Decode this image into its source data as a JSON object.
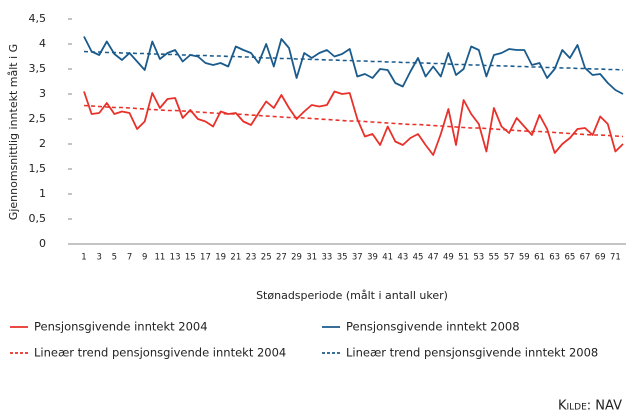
{
  "chart_data": {
    "type": "line",
    "y_label": "Gjennomsnittlig inntekt målt i G",
    "x_label": "Stønadsperiode (målt i antall uker)",
    "source": "Kilde: NAV",
    "categories": [
      1,
      null,
      3,
      null,
      5,
      null,
      7,
      null,
      9,
      null,
      11,
      null,
      13,
      null,
      15,
      null,
      17,
      null,
      19,
      null,
      21,
      null,
      23,
      null,
      25,
      null,
      27,
      null,
      29,
      null,
      31,
      null,
      33,
      null,
      35,
      null,
      37,
      null,
      39,
      null,
      41,
      null,
      43,
      null,
      45,
      null,
      47,
      null,
      49,
      null,
      51,
      null,
      53,
      null,
      55,
      null,
      57,
      null,
      59,
      null,
      61,
      null,
      63,
      null,
      65,
      null,
      67,
      null,
      69,
      null,
      71,
      null
    ],
    "ylim": [
      0,
      4.5
    ],
    "yticks": [
      0,
      {
        "value": 0.5,
        "label": "0,5"
      },
      1,
      {
        "value": 1.5,
        "label": "1,5"
      },
      2,
      {
        "value": 2.5,
        "label": "2,5"
      },
      3,
      {
        "value": 3.5,
        "label": "3,5"
      },
      4,
      {
        "value": 4.5,
        "label": "4,5"
      }
    ],
    "series": [
      {
        "name": "Pensjonsgivende inntekt 2004",
        "color": "#e8312a",
        "dashed": false,
        "values": [
          3.05,
          2.6,
          2.62,
          2.82,
          2.6,
          2.65,
          2.62,
          2.3,
          2.45,
          3.02,
          2.72,
          2.9,
          2.92,
          2.52,
          2.68,
          2.5,
          2.45,
          2.35,
          2.65,
          2.6,
          2.62,
          2.45,
          2.38,
          2.62,
          2.85,
          2.72,
          2.98,
          2.72,
          2.5,
          2.65,
          2.78,
          2.75,
          2.78,
          3.05,
          3.0,
          3.02,
          2.5,
          2.15,
          2.2,
          1.98,
          2.35,
          2.05,
          1.98,
          2.12,
          2.2,
          1.98,
          1.78,
          2.2,
          2.7,
          1.98,
          2.88,
          2.6,
          2.4,
          1.85,
          2.72,
          2.35,
          2.22,
          2.52,
          2.35,
          2.18,
          2.58,
          2.3,
          1.82,
          2.0,
          2.12,
          2.3,
          2.32,
          2.18,
          2.55,
          2.4,
          1.85,
          2.0
        ]
      },
      {
        "name": "Pensjonsgivende inntekt 2008",
        "color": "#1a5b8c",
        "dashed": false,
        "values": [
          4.15,
          3.85,
          3.78,
          4.05,
          3.8,
          3.68,
          3.82,
          3.65,
          3.48,
          4.05,
          3.7,
          3.82,
          3.88,
          3.65,
          3.78,
          3.75,
          3.62,
          3.58,
          3.62,
          3.55,
          3.95,
          3.88,
          3.82,
          3.62,
          4.0,
          3.55,
          4.1,
          3.92,
          3.32,
          3.82,
          3.72,
          3.82,
          3.88,
          3.75,
          3.8,
          3.9,
          3.35,
          3.4,
          3.32,
          3.5,
          3.48,
          3.22,
          3.15,
          3.45,
          3.72,
          3.35,
          3.55,
          3.35,
          3.82,
          3.38,
          3.5,
          3.95,
          3.88,
          3.35,
          3.78,
          3.82,
          3.9,
          3.88,
          3.88,
          3.58,
          3.62,
          3.32,
          3.5,
          3.88,
          3.72,
          3.98,
          3.52,
          3.38,
          3.4,
          3.22,
          3.08,
          3.0
        ]
      },
      {
        "name": "Lineær trend pensjonsgivende inntekt 2004",
        "color": "#e8312a",
        "dashed": true,
        "values": [
          2.77,
          2.76,
          2.75,
          2.74,
          2.73,
          2.73,
          2.72,
          2.71,
          2.7,
          2.69,
          2.68,
          2.67,
          2.67,
          2.66,
          2.65,
          2.64,
          2.63,
          2.62,
          2.61,
          2.6,
          2.6,
          2.59,
          2.58,
          2.57,
          2.56,
          2.55,
          2.54,
          2.53,
          2.53,
          2.52,
          2.51,
          2.5,
          2.49,
          2.48,
          2.47,
          2.46,
          2.46,
          2.45,
          2.44,
          2.43,
          2.42,
          2.41,
          2.4,
          2.39,
          2.39,
          2.38,
          2.37,
          2.36,
          2.35,
          2.34,
          2.33,
          2.32,
          2.32,
          2.31,
          2.3,
          2.29,
          2.28,
          2.27,
          2.26,
          2.25,
          2.25,
          2.24,
          2.23,
          2.22,
          2.21,
          2.2,
          2.19,
          2.18,
          2.18,
          2.17,
          2.16,
          2.15
        ]
      },
      {
        "name": "Lineær trend pensjonsgivende inntekt 2008",
        "color": "#1a5b8c",
        "dashed": true,
        "values": [
          3.85,
          3.84,
          3.84,
          3.83,
          3.83,
          3.82,
          3.82,
          3.81,
          3.81,
          3.8,
          3.8,
          3.79,
          3.79,
          3.78,
          3.78,
          3.77,
          3.77,
          3.76,
          3.76,
          3.75,
          3.75,
          3.74,
          3.74,
          3.73,
          3.72,
          3.72,
          3.71,
          3.71,
          3.7,
          3.7,
          3.69,
          3.69,
          3.68,
          3.68,
          3.67,
          3.67,
          3.66,
          3.66,
          3.65,
          3.65,
          3.64,
          3.64,
          3.63,
          3.63,
          3.62,
          3.62,
          3.61,
          3.61,
          3.6,
          3.59,
          3.59,
          3.58,
          3.58,
          3.57,
          3.57,
          3.56,
          3.56,
          3.55,
          3.55,
          3.54,
          3.54,
          3.53,
          3.53,
          3.52,
          3.52,
          3.51,
          3.51,
          3.5,
          3.5,
          3.49,
          3.49,
          3.48
        ]
      }
    ]
  }
}
